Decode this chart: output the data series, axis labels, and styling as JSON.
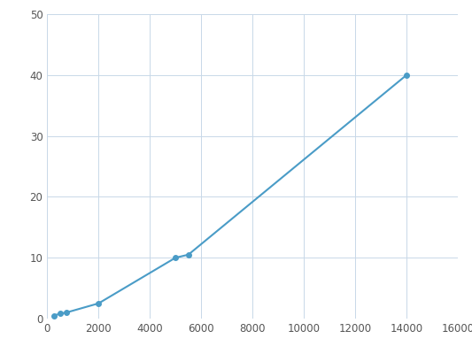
{
  "x": [
    250,
    500,
    750,
    2000,
    5000,
    5500,
    14000
  ],
  "y": [
    0.5,
    0.8,
    1.0,
    2.5,
    10.0,
    10.5,
    40.0
  ],
  "line_color": "#4a9cc7",
  "marker_color": "#4a9cc7",
  "marker_size": 4,
  "line_width": 1.5,
  "xlim": [
    0,
    16000
  ],
  "ylim": [
    0,
    50
  ],
  "xticks": [
    0,
    2000,
    4000,
    6000,
    8000,
    10000,
    12000,
    14000,
    16000
  ],
  "yticks": [
    0,
    10,
    20,
    30,
    40,
    50
  ],
  "grid_color": "#c8d8e8",
  "bg_color": "#ffffff",
  "tick_label_color": "#555555",
  "tick_label_size": 8.5
}
